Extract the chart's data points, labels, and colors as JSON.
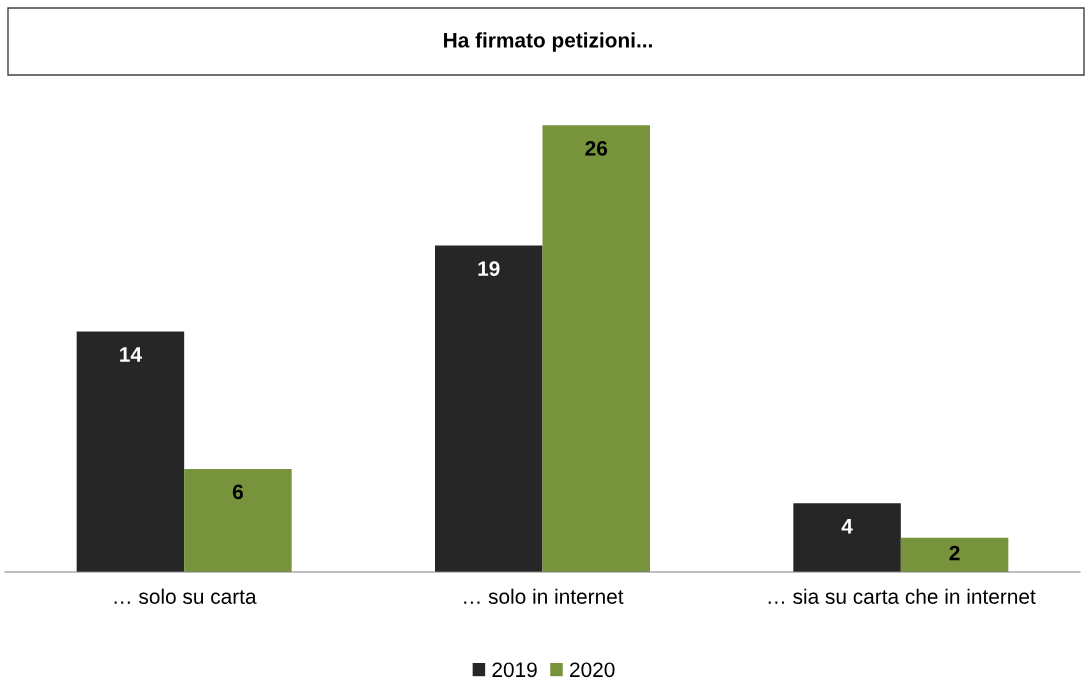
{
  "chart_data": {
    "type": "bar",
    "title": "Ha firmato petizioni...",
    "categories": [
      "… solo su carta",
      "… solo in internet",
      "… sia su carta che in internet"
    ],
    "series": [
      {
        "name": "2019",
        "color": "#262626",
        "values": [
          14,
          19,
          4
        ]
      },
      {
        "name": "2020",
        "color": "#77933c",
        "values": [
          6,
          26,
          2
        ]
      }
    ],
    "data_labels": true,
    "legend": "bottom",
    "grid": false
  }
}
